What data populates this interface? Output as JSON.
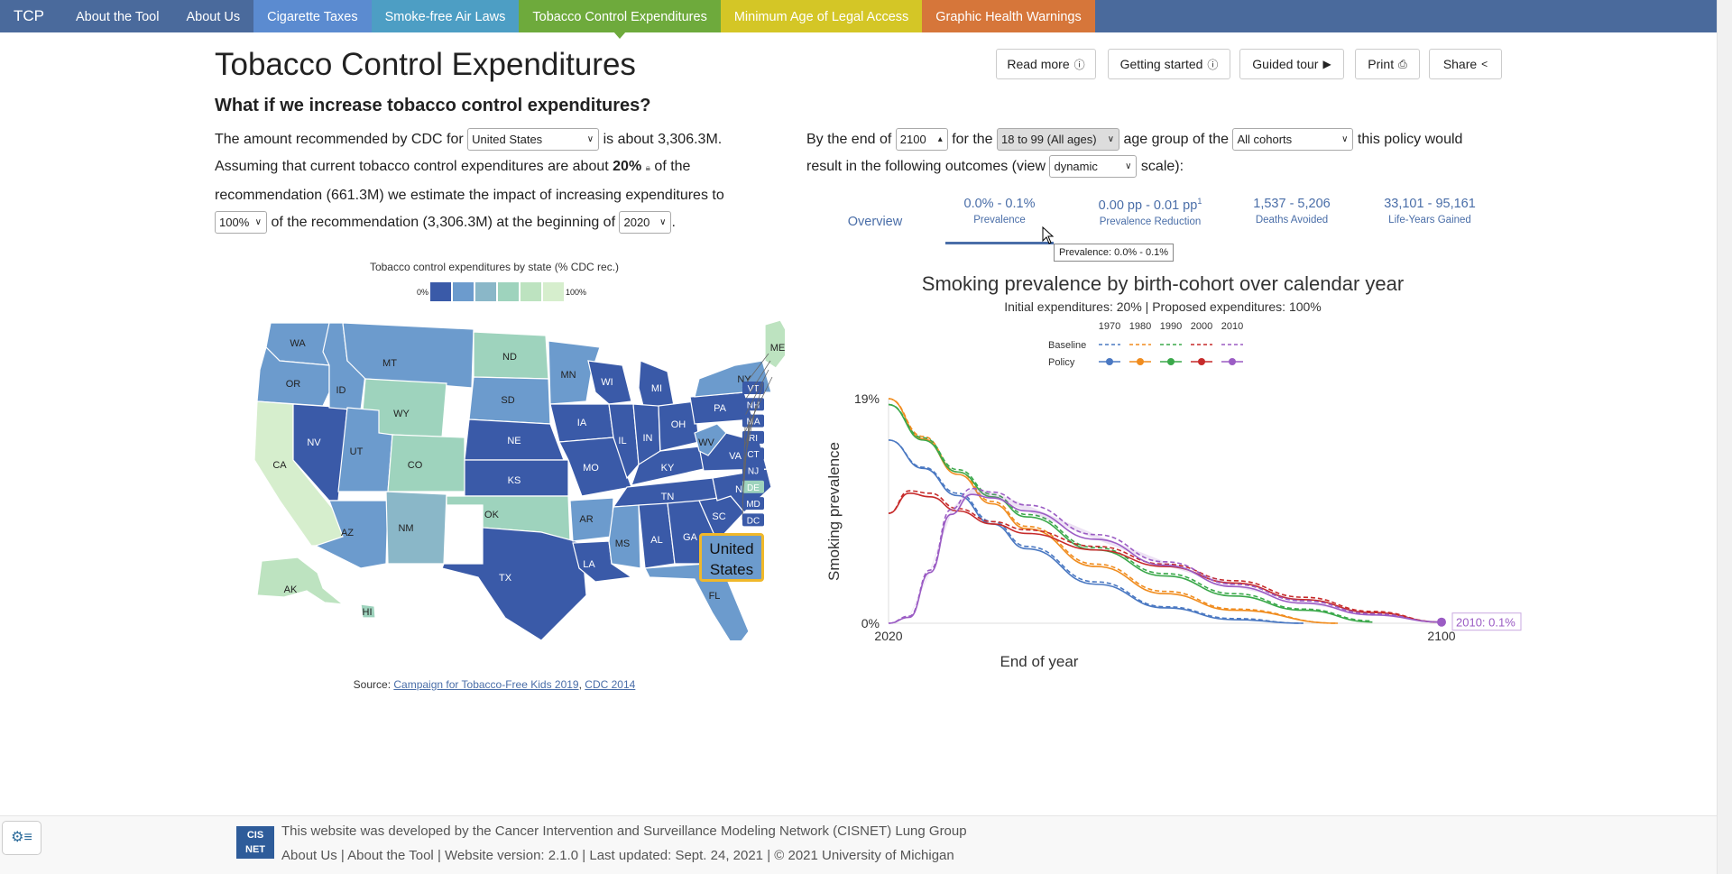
{
  "nav": {
    "brand": "TCP",
    "tabs": [
      {
        "label": "About the Tool",
        "color": "#4a6a9c"
      },
      {
        "label": "About Us",
        "color": "#4a6a9c"
      },
      {
        "label": "Cigarette Taxes",
        "color": "#5b8bd0"
      },
      {
        "label": "Smoke-free Air Laws",
        "color": "#4d9ec4"
      },
      {
        "label": "Tobacco Control Expenditures",
        "color": "#6eaa3c"
      },
      {
        "label": "Minimum Age of Legal Access",
        "color": "#d4c626"
      },
      {
        "label": "Graphic Health Warnings",
        "color": "#d6763a"
      }
    ]
  },
  "page": {
    "title": "Tobacco Control Expenditures",
    "subtitle": "What if we increase tobacco control expenditures?"
  },
  "buttons": {
    "read_more": "Read more",
    "getting_started": "Getting started",
    "guided_tour": "Guided tour",
    "print": "Print",
    "share": "Share"
  },
  "left_text": {
    "p1": "The amount recommended by CDC for",
    "state_select": "United States",
    "p2": "is about 3,306.3M.",
    "p3": "Assuming that current tobacco control expenditures are about",
    "current_pct": "20%",
    "p4": "of the",
    "p5": "recommendation (661.3M) we estimate the impact of increasing expenditures to",
    "target_select": "100%",
    "p6": "of the recommendation (3,306.3M) at the beginning of",
    "year_select": "2020",
    "p7": "."
  },
  "right_text": {
    "p1": "By the end of",
    "end_year": "2100",
    "p2": "for the",
    "age_select": "18 to 99 (All ages)",
    "p3": "age group of the",
    "cohort_select": "All cohorts",
    "p4": "this policy would",
    "p5": "result in the following outcomes (view",
    "scale_select": "dynamic",
    "p6": "scale):"
  },
  "stats": {
    "overview": "Overview",
    "prevalence_value": "0.0% - 0.1%",
    "prevalence_label": "Prevalence",
    "reduction_value": "0.00 pp - 0.01 pp",
    "reduction_sup": "1",
    "reduction_label": "Prevalence Reduction",
    "deaths_value": "1,537 - 5,206",
    "deaths_label": "Deaths Avoided",
    "lyg_value": "33,101 - 95,161",
    "lyg_label": "Life-Years Gained",
    "tooltip": "Prevalence: 0.0% - 0.1%"
  },
  "map": {
    "title": "Tobacco control expenditures by state (% CDC rec.)",
    "legend_min": "0%",
    "legend_max": "100%",
    "legend_colors": [
      "#3a5aa8",
      "#6c9bcd",
      "#8ab7c8",
      "#9ed3bd",
      "#bde3c0",
      "#d6eecd"
    ],
    "states": [
      "WA",
      "OR",
      "CA",
      "NV",
      "ID",
      "MT",
      "WY",
      "UT",
      "AZ",
      "CO",
      "NM",
      "ND",
      "SD",
      "NE",
      "KS",
      "OK",
      "TX",
      "MN",
      "IA",
      "MO",
      "AR",
      "LA",
      "WI",
      "IL",
      "MI",
      "IN",
      "OH",
      "KY",
      "TN",
      "MS",
      "AL",
      "GA",
      "FL",
      "SC",
      "NC",
      "VA",
      "WV",
      "PA",
      "NY",
      "ME",
      "AK",
      "HI"
    ],
    "east_labels": [
      "VT",
      "NH",
      "MA",
      "RI",
      "CT",
      "NJ",
      "DE",
      "MD",
      "DC"
    ],
    "us_label": "United States",
    "source_prefix": "Source:",
    "source_link1": "Campaign for Tobacco-Free Kids 2019",
    "source_sep": ",",
    "source_link2": "CDC 2014"
  },
  "chart_data": {
    "type": "line",
    "title": "Smoking prevalence by birth-cohort over calendar year",
    "subtitle": "Initial expenditures: 20% | Proposed expenditures: 100%",
    "xlabel": "End of year",
    "ylabel": "Smoking prevalence",
    "xlim": [
      2020,
      2100
    ],
    "ylim": [
      0,
      19
    ],
    "x_ticks": [
      "2020",
      "2100"
    ],
    "y_ticks": [
      "0%",
      "19%"
    ],
    "legend_cohorts": [
      "1970",
      "1980",
      "1990",
      "2000",
      "2010"
    ],
    "legend_rows": [
      "Baseline",
      "Policy"
    ],
    "end_label": "2010: 0.1%",
    "colors": {
      "1970": "#4a78c2",
      "1980": "#f08c1e",
      "1990": "#3aa84a",
      "2000": "#c62a2a",
      "2010": "#9b5cc4"
    },
    "series": [
      {
        "name": "1970",
        "x": [
          2020,
          2025,
          2030,
          2035,
          2040,
          2050,
          2060,
          2070,
          2080
        ],
        "baseline": [
          15.5,
          13.2,
          11.0,
          8.6,
          6.5,
          3.5,
          1.4,
          0.4,
          0.0
        ],
        "policy": [
          15.5,
          13.1,
          10.8,
          8.4,
          6.3,
          3.3,
          1.3,
          0.3,
          0.0
        ]
      },
      {
        "name": "1980",
        "x": [
          2020,
          2025,
          2030,
          2035,
          2040,
          2050,
          2060,
          2070,
          2085
        ],
        "baseline": [
          19.0,
          15.8,
          12.8,
          10.3,
          8.2,
          5.0,
          2.7,
          1.2,
          0.0
        ],
        "policy": [
          19.0,
          15.6,
          12.6,
          10.1,
          8.0,
          4.8,
          2.5,
          1.1,
          0.0
        ]
      },
      {
        "name": "1990",
        "x": [
          2020,
          2025,
          2030,
          2035,
          2040,
          2050,
          2060,
          2070,
          2080,
          2090
        ],
        "baseline": [
          18.5,
          15.7,
          13.0,
          10.9,
          9.2,
          6.4,
          4.2,
          2.5,
          1.2,
          0.2
        ],
        "policy": [
          18.5,
          15.5,
          12.8,
          10.7,
          9.0,
          6.2,
          4.0,
          2.3,
          1.1,
          0.1
        ]
      },
      {
        "name": "2000",
        "x": [
          2020,
          2023,
          2026,
          2030,
          2035,
          2040,
          2050,
          2060,
          2070,
          2080,
          2090,
          2100
        ],
        "baseline": [
          9.3,
          11.2,
          11.0,
          9.7,
          8.6,
          7.9,
          6.5,
          5.0,
          3.6,
          2.2,
          1.0,
          0.1
        ],
        "policy": [
          9.3,
          11.0,
          10.7,
          9.5,
          8.4,
          7.6,
          6.2,
          4.8,
          3.4,
          2.0,
          0.9,
          0.1
        ]
      },
      {
        "name": "2010",
        "x": [
          2020,
          2023,
          2026,
          2029,
          2032,
          2035,
          2040,
          2050,
          2060,
          2070,
          2080,
          2090,
          2100
        ],
        "baseline": [
          0.0,
          0.6,
          4.5,
          9.6,
          11.4,
          11.1,
          10.0,
          7.5,
          5.2,
          3.3,
          1.9,
          0.8,
          0.1
        ],
        "policy": [
          0.0,
          0.5,
          4.3,
          9.2,
          10.9,
          10.6,
          9.5,
          7.1,
          4.9,
          3.1,
          1.7,
          0.7,
          0.1
        ]
      }
    ]
  },
  "footer": {
    "logo": "CIS NET",
    "line1_prefix": "This website was developed by the Cancer Intervention and Surveillance Modeling Network (",
    "cisnet_link": "CISNET",
    "line1_suffix": ")",
    "lung_link": "Lung Group",
    "about_us": "About Us",
    "sep": "|",
    "about_tool": "About the Tool",
    "line2_suffix": "| Website version: 2.1.0 | Last updated: Sept. 24, 2021 | © 2021 University of Michigan"
  }
}
